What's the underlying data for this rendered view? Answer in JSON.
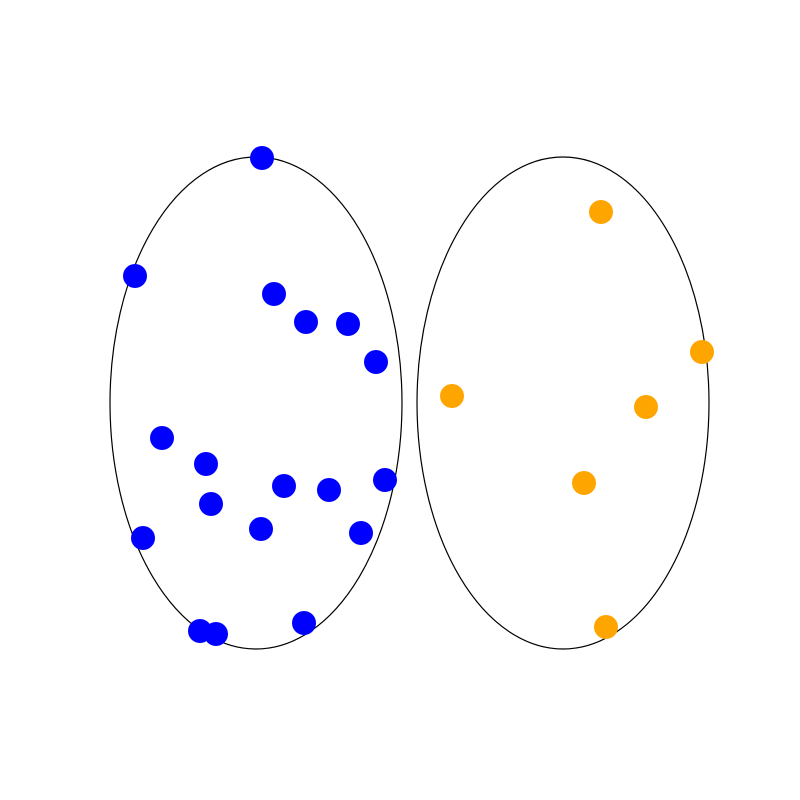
{
  "colors": {
    "background": "#ffffff",
    "outline": "#000000",
    "left_points": "#0000ff",
    "right_points": "#ffa500"
  },
  "sets": [
    {
      "name": "left-set",
      "color": "#0000ff",
      "point_count": 18
    },
    {
      "name": "right-set",
      "color": "#ffa500",
      "point_count": 6
    }
  ]
}
